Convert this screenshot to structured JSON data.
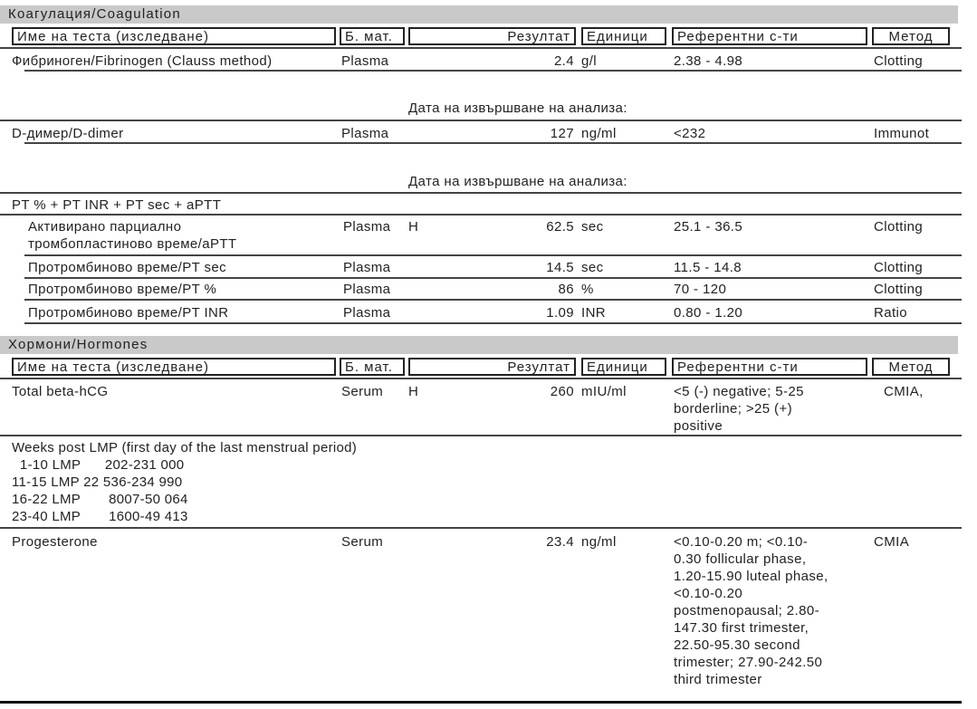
{
  "headers": {
    "name": "Име на теста (изследване)",
    "material": "Б. мат.",
    "result": "Резултат",
    "units": "Единици",
    "ref": "Референтни с-ти",
    "method": "Метод"
  },
  "coag": {
    "title": "Коагулация/Coagulation",
    "fibrinogen": {
      "name": "Фибриноген/Fibrinogen (Clauss method)",
      "material": "Plasma",
      "result": "2.4",
      "units": "g/l",
      "ref": "2.38 - 4.98",
      "method": "Clotting"
    },
    "date_label_1": "Дата на извършване на анализа:",
    "ddimer": {
      "name": "D-димер/D-dimer",
      "material": "Plasma",
      "result": "127",
      "units": "ng/ml",
      "ref": "<232",
      "method": "Immunot"
    },
    "date_label_2": "Дата на извършване на анализа:",
    "pt_group": "PT % + PT INR + PT sec + aPTT",
    "rows": [
      {
        "name1": "Активирано парциално",
        "name2": "тромбопластиново време/aPTT",
        "material": "Plasma",
        "flag": "H",
        "result": "62.5",
        "units": "sec",
        "ref": "25.1 - 36.5",
        "method": "Clotting"
      },
      {
        "name1": "Протромбиново време/PT sec",
        "material": "Plasma",
        "flag": "",
        "result": "14.5",
        "units": "sec",
        "ref": "11.5 - 14.8",
        "method": "Clotting"
      },
      {
        "name1": "Протромбиново време/PT %",
        "material": "Plasma",
        "flag": "",
        "result": "86",
        "units": "%",
        "ref": "70 - 120",
        "method": "Clotting"
      },
      {
        "name1": "Протромбиново време/PT INR",
        "material": "Plasma",
        "flag": "",
        "result": "1.09",
        "units": "INR",
        "ref": "0.80 - 1.20",
        "method": "Ratio"
      }
    ]
  },
  "hormones": {
    "title": "Хормони/Hormones",
    "hcg": {
      "name": "Total beta-hCG",
      "material": "Serum",
      "flag": "H",
      "result": "260",
      "units": "mIU/ml",
      "ref": [
        "<5 (-) negative; 5-25",
        "borderline; >25 (+)",
        "positive"
      ],
      "method": "CMIA,"
    },
    "weeks": [
      "Weeks post LMP (first day of the last menstrual period)",
      "  1-10 LMP      202-231 000",
      "11-15 LMP 22 536-234 990",
      "16-22 LMP       8007-50 064",
      "23-40 LMP       1600-49 413"
    ],
    "prog": {
      "name": "Progesterone",
      "material": "Serum",
      "result": "23.4",
      "units": "ng/ml",
      "ref": [
        "<0.10-0.20 m; <0.10-",
        "0.30 follicular phase,",
        "1.20-15.90 luteal phase,",
        "<0.10-0.20",
        "postmenopausal; 2.80-",
        "147.30 first trimester,",
        "22.50-95.30 second",
        "trimester; 27.90-242.50",
        "third trimester"
      ],
      "method": "CMIA"
    }
  }
}
